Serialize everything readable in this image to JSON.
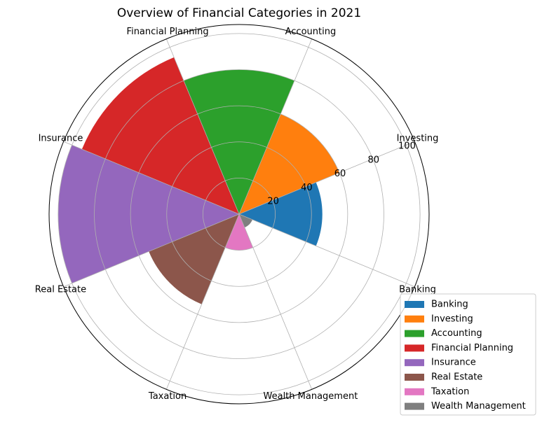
{
  "chart_data": {
    "type": "polar_bar",
    "title": "Overview of Financial Categories in 2021",
    "categories": [
      "Banking",
      "Investing",
      "Accounting",
      "Financial Planning",
      "Insurance",
      "Real Estate",
      "Taxation",
      "Wealth Management"
    ],
    "values": [
      46,
      60,
      80,
      94,
      100,
      54,
      20,
      8
    ],
    "radial_ticks": [
      "20",
      "40",
      "60",
      "80",
      "100"
    ],
    "radial_tick_values": [
      20,
      40,
      60,
      80,
      100
    ],
    "rmax": 105,
    "colors": [
      "#1f77b4",
      "#ff7f0e",
      "#2ca02c",
      "#d62728",
      "#9467bd",
      "#8c564b",
      "#e377c2",
      "#7f7f7f"
    ],
    "grid": true,
    "legend": {
      "placement": "bottom-right",
      "entries": [
        "Banking",
        "Investing",
        "Accounting",
        "Financial Planning",
        "Insurance",
        "Real Estate",
        "Taxation",
        "Wealth Management"
      ]
    }
  }
}
